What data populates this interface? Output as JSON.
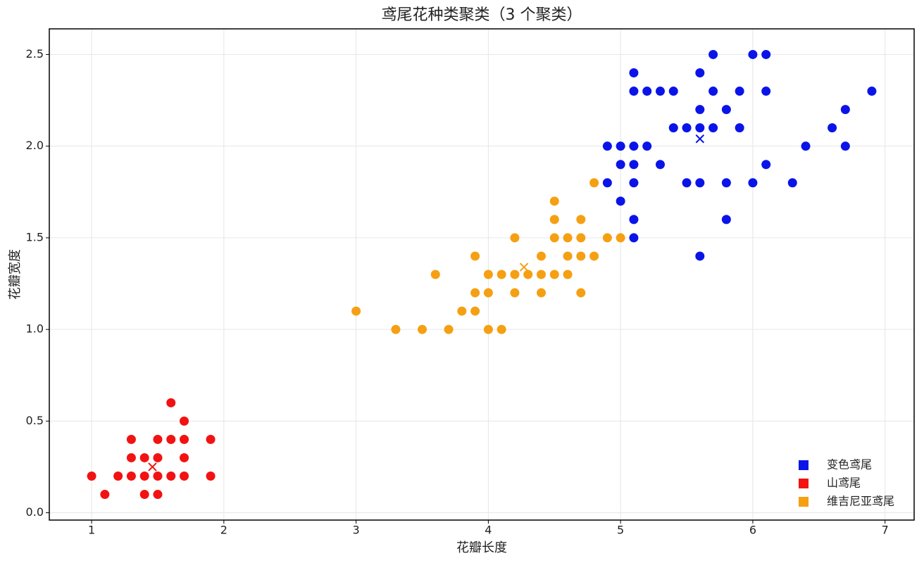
{
  "chart_data": {
    "type": "scatter",
    "title": "鸢尾花种类聚类（3 个聚类）",
    "xlabel": "花瓣长度",
    "ylabel": "花瓣宽度",
    "xlim": [
      0.68,
      7.22
    ],
    "ylim": [
      -0.04,
      2.64
    ],
    "xticks": [
      1,
      2,
      3,
      4,
      5,
      6,
      7
    ],
    "yticks": [
      {
        "value": 0,
        "label": "0.0"
      },
      0.5,
      {
        "value": 1,
        "label": "1.0"
      },
      1.5,
      {
        "value": 2,
        "label": "2.0"
      },
      2.5
    ],
    "grid": true,
    "legend": "lower right",
    "series": [
      {
        "name": "变色鸢尾",
        "color": "#0a14e8",
        "x": [
          4.9,
          4.9,
          5.0,
          5.0,
          5.0,
          5.1,
          5.1,
          5.1,
          5.1,
          5.1,
          5.1,
          5.1,
          5.2,
          5.2,
          5.3,
          5.3,
          5.4,
          5.4,
          5.5,
          5.5,
          5.6,
          5.6,
          5.6,
          5.6,
          5.6,
          5.7,
          5.7,
          5.7,
          5.8,
          5.8,
          5.8,
          5.9,
          5.9,
          6.0,
          6.0,
          6.1,
          6.1,
          6.1,
          6.3,
          6.4,
          6.6,
          6.7,
          6.7,
          6.9
        ],
        "y": [
          1.8,
          2.0,
          1.7,
          1.9,
          2.0,
          1.5,
          1.6,
          1.8,
          1.9,
          2.0,
          2.3,
          2.4,
          2.0,
          2.3,
          1.9,
          2.3,
          2.1,
          2.3,
          1.8,
          2.1,
          1.4,
          1.8,
          2.1,
          2.2,
          2.4,
          2.1,
          2.3,
          2.5,
          1.6,
          1.8,
          2.2,
          2.1,
          2.3,
          1.8,
          2.5,
          1.9,
          2.3,
          2.5,
          1.8,
          2.0,
          2.1,
          2.0,
          2.2,
          2.3
        ],
        "center": [
          5.6,
          2.04
        ]
      },
      {
        "name": "山鸢尾",
        "color": "#f21212",
        "x": [
          1.0,
          1.1,
          1.2,
          1.3,
          1.3,
          1.3,
          1.4,
          1.4,
          1.4,
          1.5,
          1.5,
          1.5,
          1.5,
          1.6,
          1.6,
          1.6,
          1.7,
          1.7,
          1.7,
          1.7,
          1.9,
          1.9
        ],
        "y": [
          0.2,
          0.1,
          0.2,
          0.2,
          0.3,
          0.4,
          0.2,
          0.1,
          0.3,
          0.2,
          0.1,
          0.3,
          0.4,
          0.2,
          0.4,
          0.6,
          0.2,
          0.3,
          0.4,
          0.5,
          0.2,
          0.4
        ],
        "center": [
          1.46,
          0.25
        ]
      },
      {
        "name": "维吉尼亚鸢尾",
        "color": "#f5a012",
        "x": [
          3.0,
          3.3,
          3.5,
          3.6,
          3.7,
          3.8,
          3.9,
          3.9,
          3.9,
          4.0,
          4.0,
          4.0,
          4.1,
          4.1,
          4.2,
          4.2,
          4.2,
          4.3,
          4.4,
          4.4,
          4.4,
          4.5,
          4.5,
          4.5,
          4.5,
          4.6,
          4.6,
          4.6,
          4.7,
          4.7,
          4.7,
          4.7,
          4.8,
          4.8,
          4.9,
          5.0
        ],
        "y": [
          1.1,
          1.0,
          1.0,
          1.3,
          1.0,
          1.1,
          1.1,
          1.2,
          1.4,
          1.0,
          1.2,
          1.3,
          1.0,
          1.3,
          1.2,
          1.3,
          1.5,
          1.3,
          1.2,
          1.3,
          1.4,
          1.3,
          1.5,
          1.6,
          1.7,
          1.3,
          1.4,
          1.5,
          1.2,
          1.4,
          1.5,
          1.6,
          1.4,
          1.8,
          1.5,
          1.5
        ],
        "center": [
          4.27,
          1.34
        ]
      }
    ]
  }
}
